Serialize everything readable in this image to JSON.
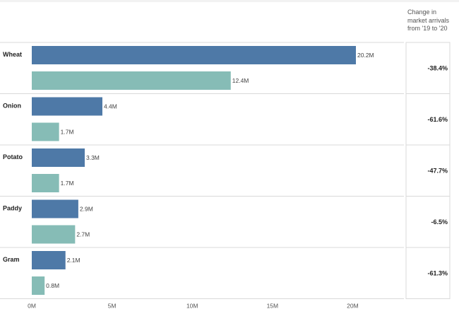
{
  "header": {
    "change_note": "Change in market arrivals from '19 to '20"
  },
  "colors": {
    "series_2019": "#4e79a7",
    "series_2020": "#86bcb6",
    "divider": "#d9d9d9"
  },
  "chart_data": {
    "type": "bar",
    "orientation": "horizontal",
    "categories": [
      "Wheat",
      "Onion",
      "Potato",
      "Paddy",
      "Gram"
    ],
    "series": [
      {
        "values": [
          20.2,
          4.4,
          3.3,
          2.9,
          2.1
        ],
        "labels": [
          "20.2M",
          "4.4M",
          "3.3M",
          "2.9M",
          "2.1M"
        ]
      },
      {
        "values": [
          12.4,
          1.7,
          1.7,
          2.7,
          0.8
        ],
        "labels": [
          "12.4M",
          "1.7M",
          "1.7M",
          "2.7M",
          "0.8M"
        ]
      }
    ],
    "change_pct": [
      "-38.4%",
      "-61.6%",
      "-47.7%",
      "-6.5%",
      "-61.3%"
    ],
    "x_ticks": [
      0,
      5,
      10,
      15,
      20
    ],
    "x_tick_labels": [
      "0M",
      "5M",
      "10M",
      "15M",
      "20M"
    ],
    "xlim": [
      0,
      23
    ]
  }
}
